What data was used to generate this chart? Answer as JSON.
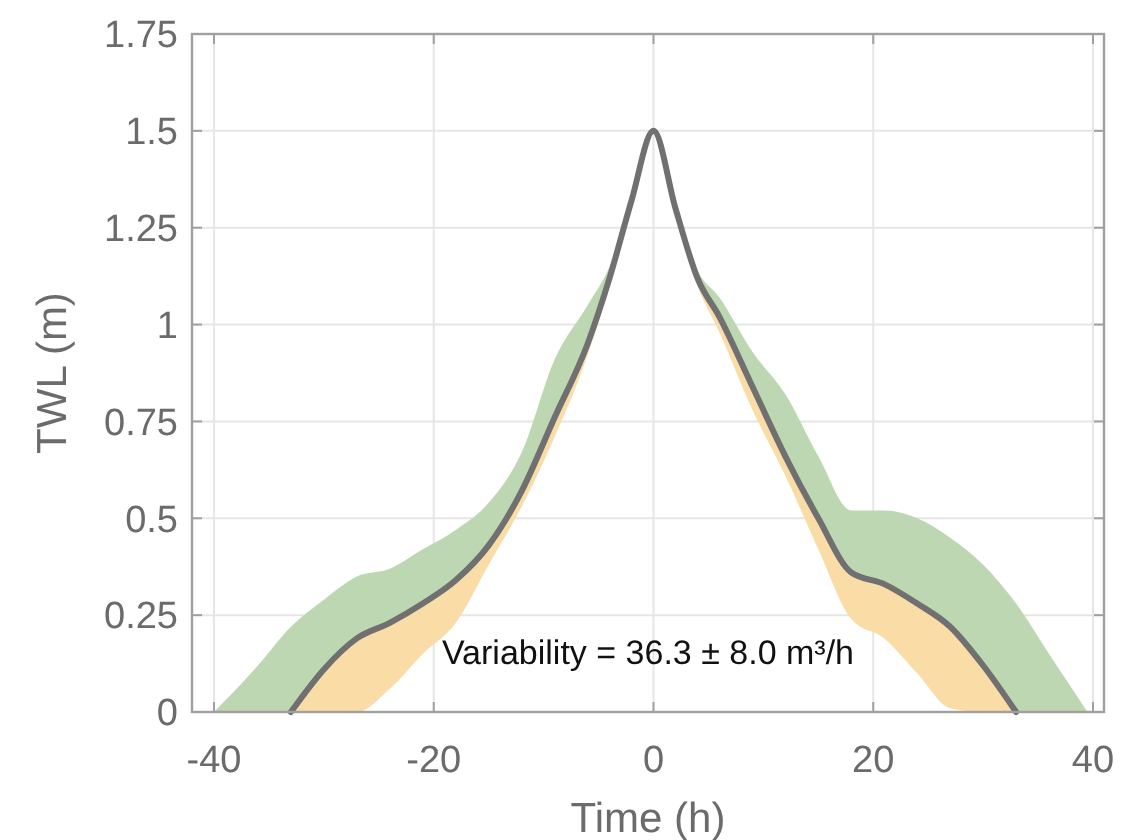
{
  "chart_data": {
    "type": "line",
    "xlabel": "Time (h)",
    "ylabel": "TWL (m)",
    "xlim": [
      -42,
      41
    ],
    "ylim": [
      0,
      1.75
    ],
    "xticks": [
      -40,
      -20,
      0,
      20,
      40
    ],
    "yticks": [
      0,
      0.25,
      0.5,
      0.75,
      1,
      1.25,
      1.5,
      1.75
    ],
    "grid": true,
    "annotations": [
      "Variability = 36.3 ± 8.0 m³/h"
    ],
    "series": [
      {
        "type": "line",
        "color": "#bcd7b1",
        "x": [
          -40,
          -36,
          -33,
          -30,
          -27,
          -24,
          -21,
          -18,
          -15,
          -12,
          -9,
          -6,
          -4,
          -2,
          0,
          2,
          4,
          6,
          9,
          12,
          15,
          18,
          21,
          24,
          27,
          30,
          33,
          36,
          39.5
        ],
        "values": [
          null,
          null,
          null,
          null,
          null,
          null,
          null,
          null,
          null,
          null,
          null,
          null,
          null,
          null,
          null,
          null,
          null,
          null,
          null,
          null,
          null,
          null,
          null,
          null,
          null,
          null,
          null,
          null,
          null
        ],
        "lower": [
          0,
          0,
          0,
          0.11,
          0.19,
          0.23,
          0.28,
          0.34,
          0.43,
          0.57,
          0.76,
          0.95,
          1.12,
          1.32,
          1.5,
          1.3,
          1.12,
          1.02,
          0.84,
          0.66,
          0.5,
          0.36,
          0.33,
          0.28,
          0.22,
          0.12,
          0,
          0,
          0
        ],
        "upper": [
          0,
          0.12,
          0.22,
          0.29,
          0.35,
          0.37,
          0.42,
          0.47,
          0.54,
          0.67,
          0.91,
          1.05,
          1.15,
          1.32,
          1.5,
          1.31,
          1.14,
          1.07,
          0.93,
          0.82,
          0.66,
          0.52,
          0.52,
          0.5,
          0.45,
          0.38,
          0.28,
          0.15,
          0
        ]
      },
      {
        "type": "line",
        "color": "#f9dca6",
        "x": [
          -33,
          -30,
          -27,
          -24,
          -21,
          -18,
          -15,
          -12,
          -9,
          -6,
          -4,
          -2,
          0,
          2,
          4,
          6,
          9,
          12,
          15,
          18,
          21,
          24,
          27,
          30,
          33
        ],
        "values": [
          null,
          null,
          null,
          null,
          null,
          null,
          null,
          null,
          null,
          null,
          null,
          null,
          null,
          null,
          null,
          null,
          null,
          null,
          null,
          null,
          null,
          null,
          null,
          null,
          null
        ],
        "lower": [
          0,
          0,
          0,
          0.06,
          0.15,
          0.23,
          0.38,
          0.53,
          0.71,
          0.92,
          1.1,
          1.3,
          1.5,
          1.28,
          1.1,
          0.98,
          0.78,
          0.61,
          0.42,
          0.24,
          0.19,
          0.1,
          0.01,
          0,
          0
        ],
        "upper": [
          0,
          0.11,
          0.19,
          0.23,
          0.28,
          0.34,
          0.43,
          0.57,
          0.76,
          0.95,
          1.12,
          1.32,
          1.5,
          1.3,
          1.12,
          1.02,
          0.84,
          0.66,
          0.5,
          0.36,
          0.33,
          0.28,
          0.22,
          0.12,
          0
        ]
      },
      {
        "type": "line",
        "color": "#707070",
        "x": [
          -33,
          -30,
          -27,
          -24,
          -21,
          -18,
          -15,
          -12,
          -9,
          -6,
          -4,
          -2,
          0,
          2,
          4,
          6,
          9,
          12,
          15,
          18,
          21,
          24,
          27,
          30,
          33
        ],
        "values": [
          0,
          0.11,
          0.19,
          0.23,
          0.28,
          0.34,
          0.43,
          0.57,
          0.76,
          0.95,
          1.12,
          1.32,
          1.5,
          1.3,
          1.12,
          1.02,
          0.84,
          0.66,
          0.5,
          0.36,
          0.33,
          0.28,
          0.22,
          0.12,
          0
        ]
      }
    ]
  }
}
